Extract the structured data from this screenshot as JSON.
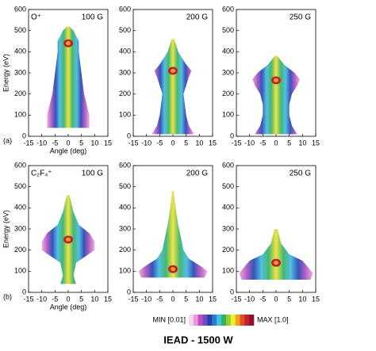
{
  "chart_data": [
    {
      "type": "iead",
      "species": "O⁺",
      "field": "100 G",
      "panel": "(a)",
      "ylabel": "Energy (eV)",
      "xlabel": "Angle (deg)",
      "xlim": [
        -15,
        15
      ],
      "xticks": [
        -15,
        -10,
        -5,
        0,
        5,
        10,
        15
      ],
      "ylim": [
        0,
        600
      ],
      "yticks": [
        0,
        100,
        200,
        300,
        400,
        500,
        600
      ],
      "profile": {
        "energy": [
          40,
          100,
          200,
          300,
          400,
          450,
          500,
          520
        ],
        "half_width": [
          8,
          8,
          6,
          5,
          4,
          4,
          2,
          0.5
        ]
      },
      "peak": 440
    },
    {
      "type": "iead",
      "field": "200 G",
      "xlim": [
        -15,
        15
      ],
      "xticks": [
        -15,
        -10,
        -5,
        0,
        5,
        10,
        15
      ],
      "ylim": [
        0,
        600
      ],
      "yticks": [
        0,
        100,
        200,
        300,
        400,
        500,
        600
      ],
      "profile": {
        "energy": [
          10,
          50,
          100,
          200,
          280,
          310,
          340,
          400,
          460
        ],
        "half_width": [
          8,
          6,
          5,
          4,
          6,
          7,
          5,
          2,
          0.5
        ]
      },
      "peak": 310
    },
    {
      "type": "iead",
      "field": "250 G",
      "xlim": [
        -15,
        15
      ],
      "xticks": [
        -15,
        -10,
        -5,
        0,
        5,
        10,
        15
      ],
      "ylim": [
        0,
        600
      ],
      "yticks": [
        0,
        100,
        200,
        300,
        400,
        500,
        600
      ],
      "profile": {
        "energy": [
          10,
          50,
          100,
          150,
          200,
          240,
          270,
          300,
          340,
          380
        ],
        "half_width": [
          8,
          6,
          5,
          5,
          6,
          8,
          9,
          7,
          3,
          0.5
        ]
      },
      "peak": 265
    },
    {
      "type": "iead",
      "species": "C₂F₄⁺",
      "field": "100 G",
      "panel": "(b)",
      "ylabel": "Energy (eV)",
      "xlabel": "Angle (deg)",
      "xlim": [
        -15,
        15
      ],
      "xticks": [
        -15,
        -10,
        -5,
        0,
        5,
        10,
        15
      ],
      "ylim": [
        0,
        600
      ],
      "yticks": [
        0,
        100,
        200,
        300,
        400,
        500,
        600
      ],
      "profile": {
        "energy": [
          40,
          80,
          140,
          200,
          240,
          280,
          320,
          380,
          460
        ],
        "half_width": [
          3,
          2,
          3,
          10,
          10,
          8,
          4,
          2,
          0.5
        ]
      },
      "peak": 250
    },
    {
      "type": "iead",
      "field": "200 G",
      "xlim": [
        -15,
        15
      ],
      "xticks": [
        -15,
        -10,
        -5,
        0,
        5,
        10,
        15
      ],
      "ylim": [
        0,
        600
      ],
      "yticks": [
        0,
        100,
        200,
        300,
        400,
        500,
        600
      ],
      "profile": {
        "energy": [
          70,
          100,
          120,
          160,
          200,
          260,
          320,
          400,
          480
        ],
        "half_width": [
          12,
          13,
          11,
          6,
          4,
          3,
          2,
          1,
          0.3
        ]
      },
      "peak": 110
    },
    {
      "type": "iead",
      "field": "250 G",
      "xlim": [
        -15,
        15
      ],
      "xticks": [
        -15,
        -10,
        -5,
        0,
        5,
        10,
        15
      ],
      "ylim": [
        0,
        600
      ],
      "yticks": [
        0,
        100,
        200,
        300,
        400,
        500,
        600
      ],
      "profile": {
        "energy": [
          60,
          90,
          120,
          150,
          180,
          230,
          300
        ],
        "half_width": [
          13,
          14,
          12,
          10,
          5,
          2,
          0.5
        ]
      },
      "peak": 140
    }
  ],
  "colorbar": {
    "min_label": "MIN [0.01]",
    "max_label": "MAX [1.0]",
    "colors": [
      "#f4d8ee",
      "#e89ad8",
      "#c04cc0",
      "#6a4cc0",
      "#2040b0",
      "#2a7fd0",
      "#40c0e0",
      "#30b060",
      "#90d030",
      "#f0f030",
      "#f0a020",
      "#e05020",
      "#c02030",
      "#901030"
    ]
  },
  "caption": "IEAD - 1500 W"
}
